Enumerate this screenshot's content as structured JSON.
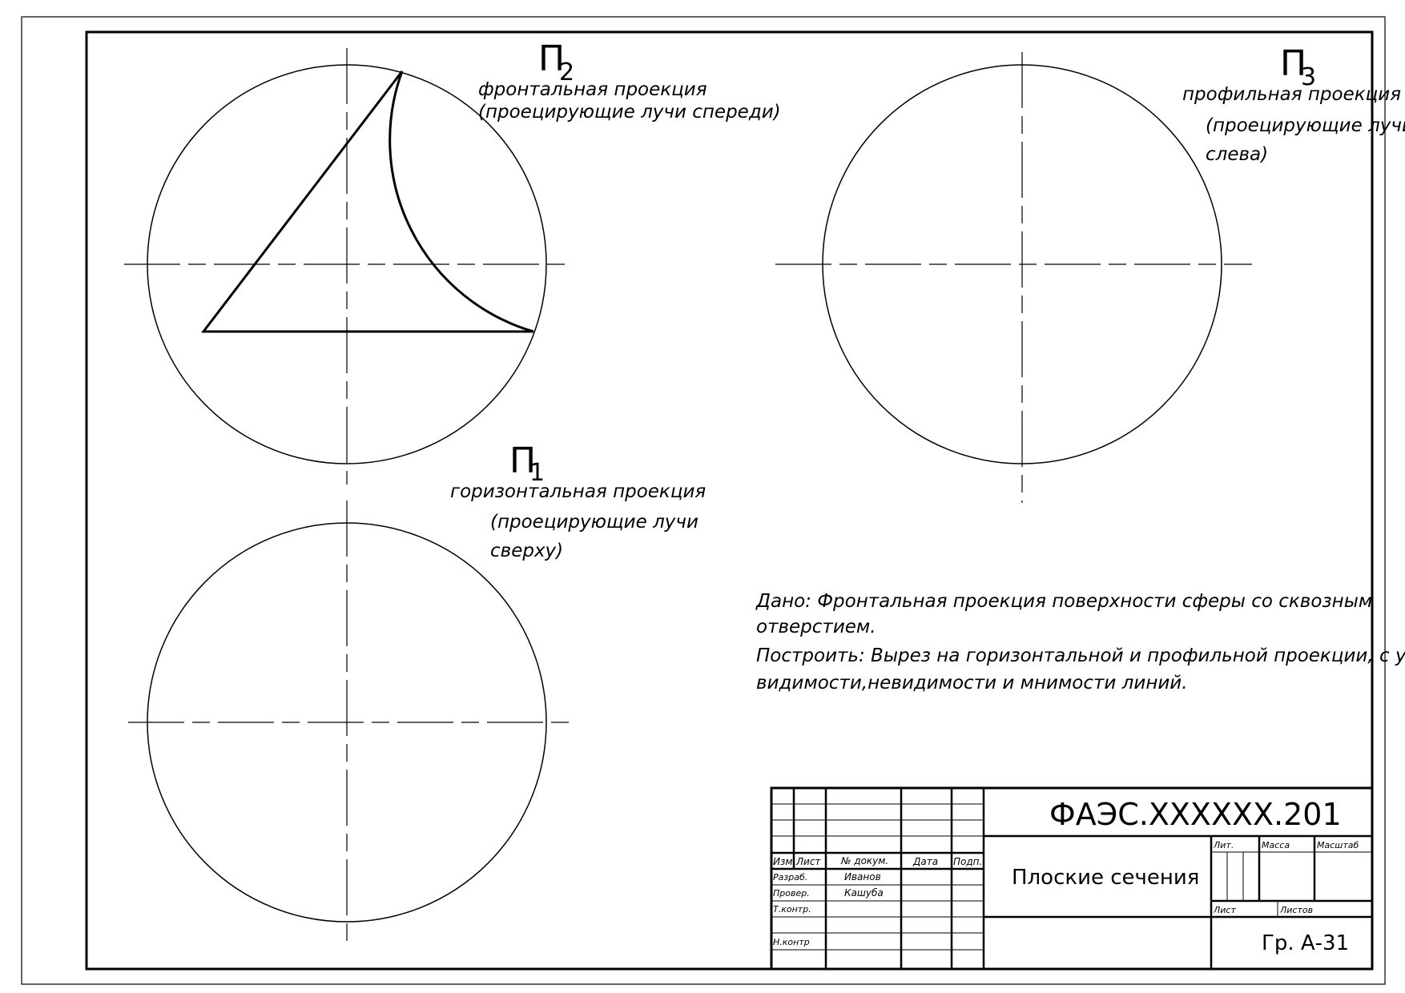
{
  "views": {
    "frontal": {
      "symbol": "П",
      "index": "2",
      "caption_1": "фронтальная проекция",
      "caption_2": "(проецирующие лучи спереди)"
    },
    "profile": {
      "symbol": "П",
      "index": "3",
      "caption_1": "профильная проекция",
      "caption_2": "(проецирующие лучи",
      "caption_3": "слева)"
    },
    "horizontal": {
      "symbol": "П",
      "index": "1",
      "caption_1": "горизонтальная проекция",
      "caption_2": "(проецирующие лучи",
      "caption_3": "сверху)"
    }
  },
  "task": {
    "line_1": "Дано: Фронтальная проекция поверхности сферы со сквозным",
    "line_2": "отверстием.",
    "line_3": "Построить: Вырез на горизонтальной и профильной проекции, с учетом",
    "line_4": "видимости,невидимости и мнимости линий."
  },
  "title_block": {
    "code": "ФАЭС.XXXXXX.201",
    "title": "Плоские сечения",
    "group": "Гр. А-31",
    "headers": {
      "izm": "Изм.",
      "list": "Лист",
      "doc": "№ докум.",
      "date": "Дата",
      "sign": "Подп.",
      "lit": "Лит.",
      "mass": "Масса",
      "scale": "Масштаб",
      "sheet": "Лист",
      "sheets": "Листов"
    },
    "roles": {
      "razrab": "Разраб.",
      "prover": "Провер.",
      "tkontr": "Т.контр.",
      "nkontr": "Н.контр"
    },
    "people": {
      "razrab": "Иванов",
      "prover": "Кашуба"
    }
  }
}
